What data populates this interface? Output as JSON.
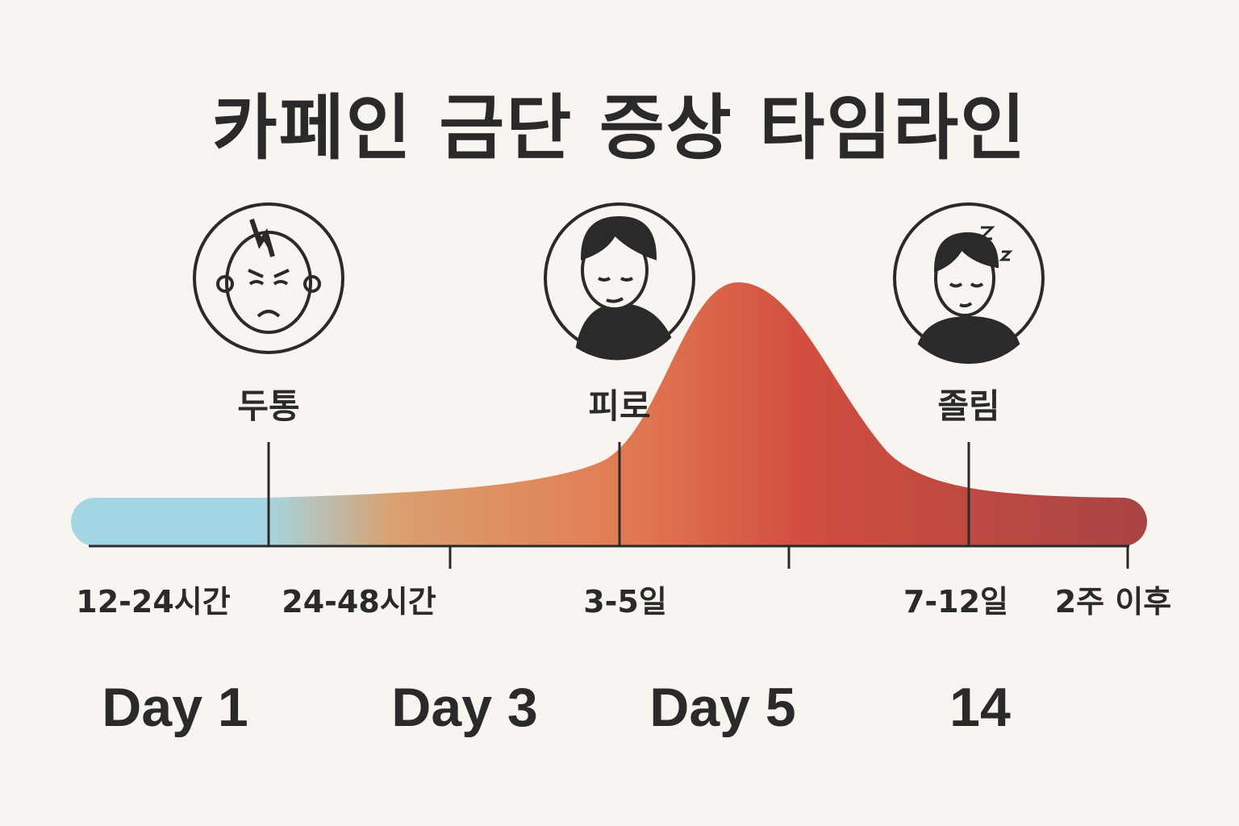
{
  "title": "카페인 금단 증상 타임라인",
  "symptoms": [
    {
      "label": "두통",
      "icon": "headache-face-icon"
    },
    {
      "label": "피로",
      "icon": "tired-person-icon"
    },
    {
      "label": "졸림",
      "icon": "sleepy-person-icon"
    }
  ],
  "time_labels": [
    "12-24시간",
    "24-48시간",
    "3-5일",
    "7-12일",
    "2주 이후"
  ],
  "day_labels": [
    "Day 1",
    "Day 3",
    "Day 5",
    "14"
  ],
  "colors": {
    "start": "#a3d6e2",
    "mid": "#e27e55",
    "peak": "#d24e3f",
    "end": "#a84444",
    "ink": "#2a2a2a",
    "background": "#f8f5f0"
  }
}
